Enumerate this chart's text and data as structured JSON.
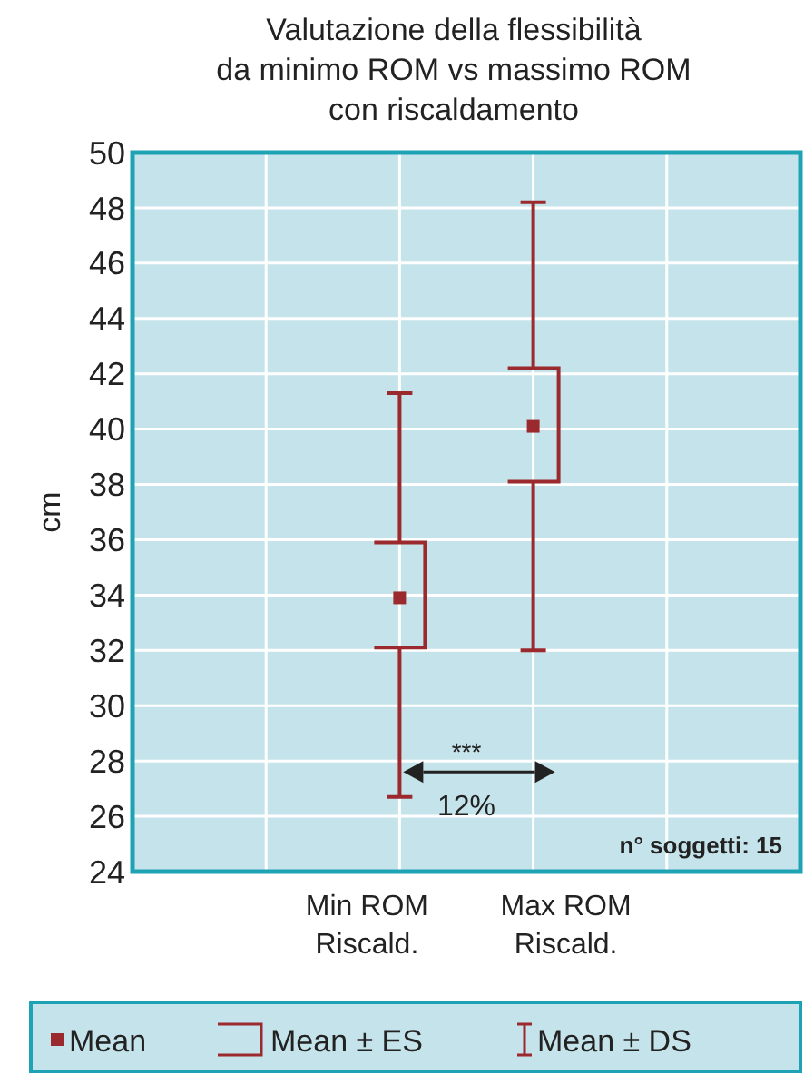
{
  "chart_data": {
    "type": "box",
    "title": "Valutazione della flessibilità\nda minimo ROM vs massimo ROM\ncon riscaldamento",
    "ylabel": "cm",
    "categories": [
      "Min ROM\nRiscald.",
      "Max ROM\nRiscald."
    ],
    "series": [
      {
        "type": "box",
        "color": "#9b2a2e",
        "boxes": [
          {
            "low": 26.7,
            "q1": 32.1,
            "q3": 35.9,
            "high": 41.3,
            "mean": 33.9
          },
          {
            "low": 32.0,
            "q1": 38.1,
            "q3": 42.2,
            "high": 48.2,
            "mean": 40.1
          }
        ]
      }
    ],
    "ylim": [
      24,
      50
    ],
    "yticks": [
      24,
      26,
      28,
      30,
      32,
      34,
      36,
      38,
      40,
      42,
      44,
      46,
      48,
      50
    ],
    "grid": true,
    "annotations": [
      "Mean",
      "Mean ± ES",
      "Mean ± DS",
      "***",
      "12%",
      "n° soggetti: 15"
    ]
  }
}
